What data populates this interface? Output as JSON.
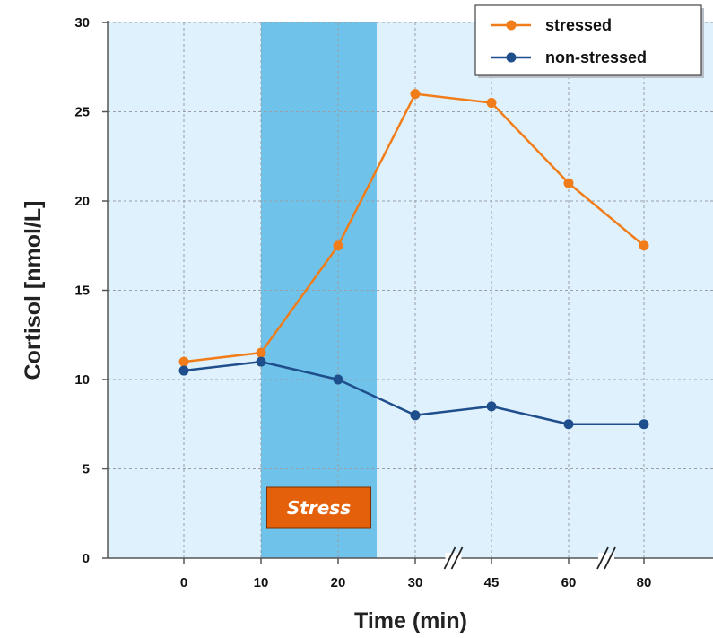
{
  "chart_data": {
    "type": "line",
    "xlabel": "Time (min)",
    "ylabel": "Cortisol [nmol/L]",
    "ylim": [
      0,
      30
    ],
    "y_ticks": [
      "0",
      "5",
      "10",
      "15",
      "20",
      "25",
      "30"
    ],
    "categories": [
      "0",
      "10",
      "20",
      "30",
      "45",
      "60",
      "80"
    ],
    "axis_breaks": [
      "30-45",
      "60-80"
    ],
    "grid": true,
    "legend_position": "top-right",
    "series": [
      {
        "name": "stressed",
        "color": "#f07d1a",
        "values": [
          11,
          11.5,
          17.5,
          26,
          25.5,
          21,
          17.5
        ]
      },
      {
        "name": "non-stressed",
        "color": "#1f4e8c",
        "values": [
          10.5,
          11,
          10,
          8,
          8.5,
          7.5,
          7.5
        ]
      }
    ],
    "annotations": [
      {
        "label": "Stress",
        "x_from": 10,
        "x_to": 25,
        "band_color": "#6fc3ea",
        "label_background": "#e4600a"
      }
    ],
    "plot_background": "#dff1fc"
  }
}
